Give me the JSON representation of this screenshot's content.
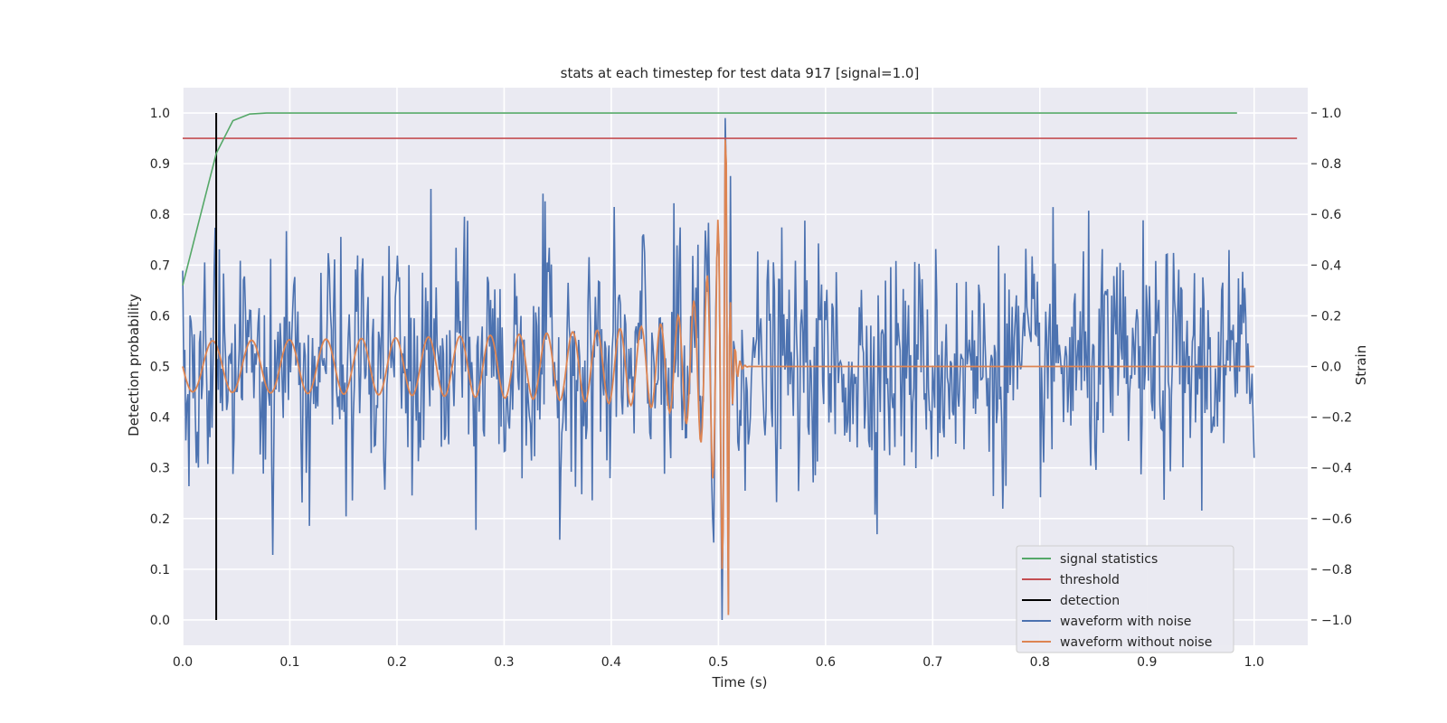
{
  "chart_data": {
    "type": "line",
    "title": "stats at each timestep for test data 917 [signal=1.0]",
    "xlabel": "Time (s)",
    "ylabel_left": "Detection probability",
    "ylabel_right": "Strain",
    "xlim": [
      0.0,
      1.05
    ],
    "ylim_left": [
      -0.05,
      1.05
    ],
    "ylim_right": [
      -1.1,
      1.1
    ],
    "x_ticks": [
      "0.0",
      "0.1",
      "0.2",
      "0.3",
      "0.4",
      "0.5",
      "0.6",
      "0.7",
      "0.8",
      "0.9",
      "1.0"
    ],
    "y_left_ticks": [
      "0.0",
      "0.1",
      "0.2",
      "0.3",
      "0.4",
      "0.5",
      "0.6",
      "0.7",
      "0.8",
      "0.9",
      "1.0"
    ],
    "y_right_ticks": [
      "−1.0",
      "−0.8",
      "−0.6",
      "−0.4",
      "−0.2",
      "0.0",
      "0.2",
      "0.4",
      "0.6",
      "0.8",
      "1.0"
    ],
    "grid": true,
    "legend_position": "lower-right",
    "background": "#eaeaf2",
    "series": [
      {
        "name": "signal statistics",
        "axis": "left",
        "color": "#55a868",
        "x": [
          0.0,
          0.0156,
          0.0313,
          0.0469,
          0.0625,
          0.0781,
          0.1,
          0.2,
          0.3,
          0.4,
          0.5,
          0.6,
          0.7,
          0.8,
          0.9,
          0.984
        ],
        "y": [
          0.66,
          0.79,
          0.92,
          0.985,
          0.998,
          1.0,
          1.0,
          1.0,
          1.0,
          1.0,
          1.0,
          1.0,
          1.0,
          1.0,
          1.0,
          1.0
        ]
      },
      {
        "name": "threshold",
        "axis": "left",
        "color": "#c44e52",
        "x": [
          0.0,
          1.04
        ],
        "y": [
          0.95,
          0.95
        ]
      },
      {
        "name": "detection",
        "axis": "left",
        "color": "#000000",
        "x": [
          0.0313,
          0.0313
        ],
        "y": [
          0.0,
          1.0
        ]
      },
      {
        "name": "waveform with noise",
        "axis": "right",
        "color": "#4c72b0",
        "x_range": [
          0.0,
          1.0
        ],
        "num_points": 1024,
        "y_min": -1.0,
        "y_max": 0.98,
        "std_approx": 0.22
      },
      {
        "name": "waveform without noise",
        "axis": "right",
        "color": "#dd8452",
        "x_range": [
          0.0,
          1.0
        ],
        "merger_time": 0.51,
        "peak": 1.0,
        "trough": -0.88,
        "post_merger_value": 0.0
      }
    ]
  }
}
